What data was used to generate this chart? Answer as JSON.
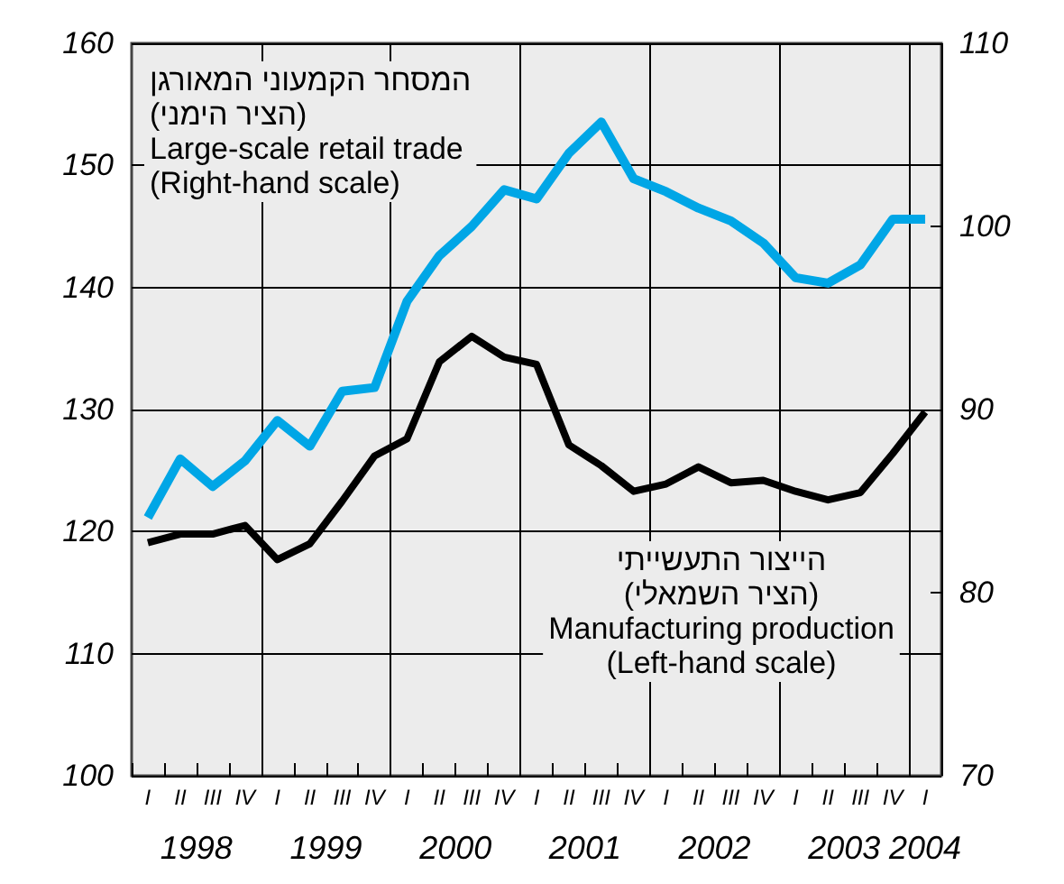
{
  "chart_data": {
    "type": "line",
    "categories": [
      "I",
      "II",
      "III",
      "IV",
      "I",
      "II",
      "III",
      "IV",
      "I",
      "II",
      "III",
      "IV",
      "I",
      "II",
      "III",
      "IV",
      "I",
      "II",
      "III",
      "IV",
      "I",
      "II",
      "III",
      "IV",
      "I"
    ],
    "series": [
      {
        "name": "המסחר הקמעוני המאורגן\n(הציר הימני)\nLarge-scale retail trade\n(Right-hand scale)",
        "color": "#00a6e6",
        "axis": "y2",
        "values": [
          84.1,
          87.3,
          85.8,
          87.2,
          89.4,
          88.0,
          91.0,
          91.2,
          95.9,
          98.4,
          100.0,
          102.0,
          101.5,
          104.0,
          105.7,
          102.6,
          101.9,
          101.0,
          100.3,
          99.1,
          97.2,
          96.9,
          97.9,
          100.4,
          100.4
        ]
      },
      {
        "name": "הייצור התעשייתי\n(הציר השמאלי)\nManufacturing production\n(Left-hand scale)",
        "color": "#000000",
        "values": [
          119.1,
          119.8,
          119.8,
          120.5,
          117.7,
          119.0,
          122.5,
          126.2,
          127.6,
          133.9,
          136.0,
          134.3,
          133.7,
          127.1,
          125.4,
          123.3,
          123.9,
          125.3,
          124.0,
          124.2,
          123.3,
          122.6,
          123.2,
          126.4,
          129.8
        ]
      }
    ],
    "ylim": [
      100,
      160
    ],
    "yticks": [
      100,
      110,
      120,
      130,
      140,
      150,
      160
    ],
    "y2lim": [
      70,
      110
    ],
    "y2ticks": [
      70,
      80,
      90,
      100,
      110
    ],
    "annotations": [
      "1998",
      "1999",
      "2000",
      "2001",
      "2002",
      "2003",
      "2004"
    ],
    "grid": true,
    "marker": "none",
    "line_style": "solid"
  }
}
